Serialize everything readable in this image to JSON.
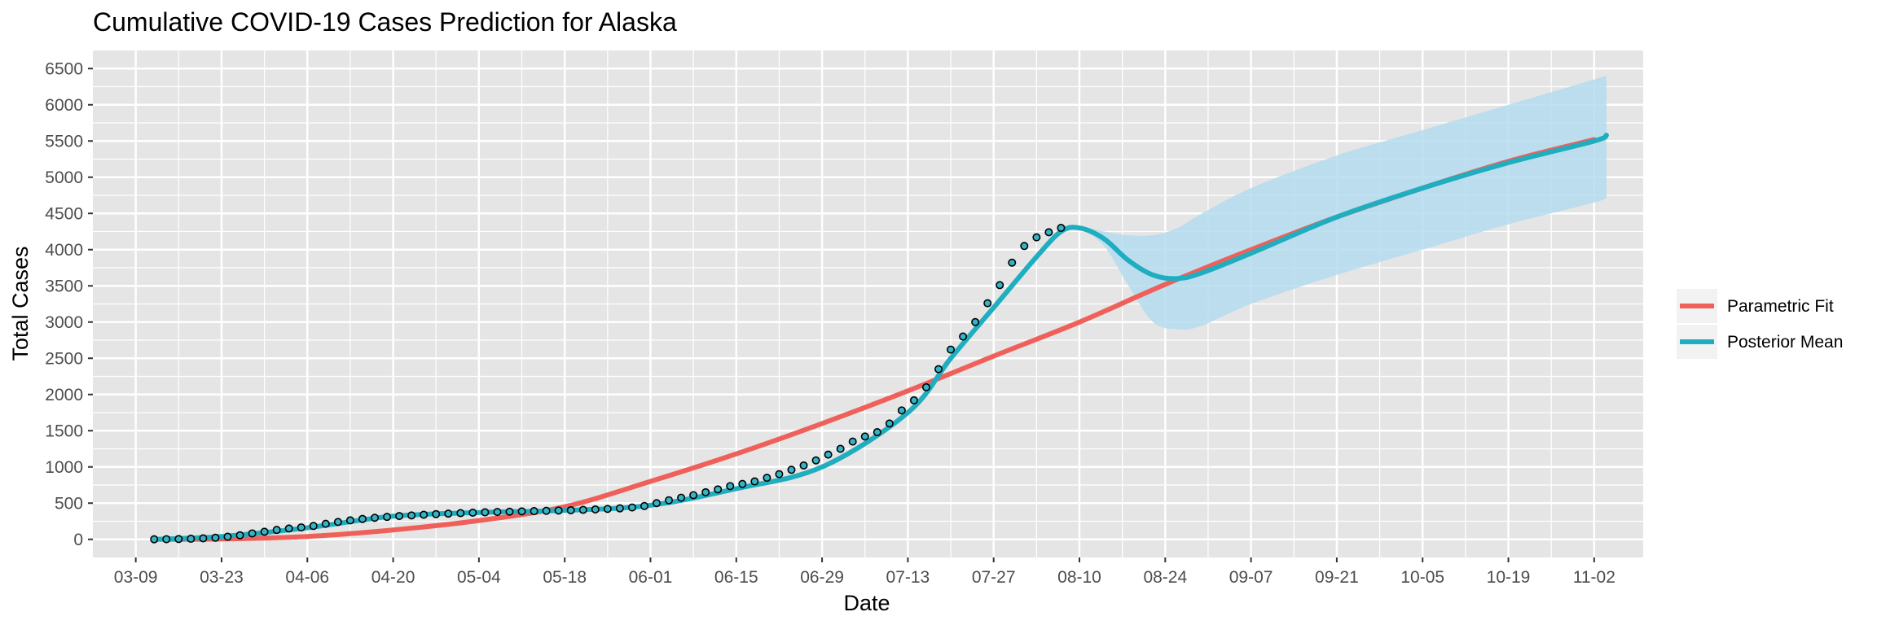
{
  "chart_data": {
    "type": "line",
    "title": "Cumulative COVID-19 Cases Prediction for Alaska",
    "xlabel": "Date",
    "ylabel": "Total Cases",
    "x_tick_labels": [
      "03-09",
      "03-23",
      "04-06",
      "04-20",
      "05-04",
      "05-18",
      "06-01",
      "06-15",
      "06-29",
      "07-13",
      "07-27",
      "08-10",
      "08-24",
      "09-07",
      "09-21",
      "10-05",
      "10-19",
      "11-02"
    ],
    "y_ticks": [
      0,
      500,
      1000,
      1500,
      2000,
      2500,
      3000,
      3500,
      4000,
      4500,
      5000,
      5500,
      6000,
      6500
    ],
    "xlim": [
      "2020-03-02",
      "2020-11-10"
    ],
    "ylim": [
      -250,
      6750
    ],
    "grid": true,
    "legend_position": "right",
    "colors": {
      "panel": "#e5e5e5",
      "grid": "#ffffff",
      "parametric": "#f0605a",
      "posterior": "#1faebf",
      "band": "#b5dcee",
      "points_fill": "#35b4c6",
      "points_stroke": "#000000"
    },
    "series": [
      {
        "name": "Parametric Fit",
        "x": [
          "2020-03-12",
          "2020-03-23",
          "2020-04-06",
          "2020-04-20",
          "2020-05-04",
          "2020-05-18",
          "2020-06-01",
          "2020-06-15",
          "2020-06-29",
          "2020-07-13",
          "2020-07-27",
          "2020-08-10",
          "2020-08-24",
          "2020-09-07",
          "2020-09-21",
          "2020-10-05",
          "2020-10-19",
          "2020-11-02"
        ],
        "y": [
          0,
          5,
          40,
          130,
          260,
          450,
          800,
          1180,
          1600,
          2050,
          2530,
          3000,
          3520,
          4000,
          4450,
          4850,
          5220,
          5520
        ]
      },
      {
        "name": "Posterior Mean",
        "x": [
          "2020-03-12",
          "2020-03-23",
          "2020-04-06",
          "2020-04-20",
          "2020-05-04",
          "2020-05-18",
          "2020-06-01",
          "2020-06-15",
          "2020-06-29",
          "2020-07-13",
          "2020-07-20",
          "2020-07-27",
          "2020-08-03",
          "2020-08-07",
          "2020-08-10",
          "2020-08-14",
          "2020-08-18",
          "2020-08-22",
          "2020-08-26",
          "2020-08-30",
          "2020-09-07",
          "2020-09-21",
          "2020-10-05",
          "2020-10-19",
          "2020-11-02",
          "2020-11-04"
        ],
        "y": [
          0,
          40,
          160,
          320,
          370,
          400,
          470,
          700,
          1000,
          1750,
          2500,
          3200,
          3900,
          4250,
          4300,
          4150,
          3850,
          3650,
          3600,
          3680,
          3950,
          4450,
          4850,
          5200,
          5500,
          5580
        ]
      }
    ],
    "band": {
      "name": "Posterior interval",
      "x": [
        "2020-08-07",
        "2020-08-10",
        "2020-08-14",
        "2020-08-18",
        "2020-08-22",
        "2020-08-26",
        "2020-08-30",
        "2020-09-07",
        "2020-09-21",
        "2020-10-05",
        "2020-10-19",
        "2020-11-02",
        "2020-11-04"
      ],
      "upper": [
        4290,
        4320,
        4250,
        4200,
        4200,
        4300,
        4500,
        4850,
        5300,
        5650,
        6000,
        6350,
        6400
      ],
      "lower": [
        4290,
        4280,
        4050,
        3500,
        3000,
        2900,
        2950,
        3250,
        3650,
        4000,
        4350,
        4650,
        4720
      ]
    },
    "observed": {
      "name": "Observed cases",
      "x": [
        "2020-03-12",
        "2020-03-14",
        "2020-03-16",
        "2020-03-18",
        "2020-03-20",
        "2020-03-22",
        "2020-03-24",
        "2020-03-26",
        "2020-03-28",
        "2020-03-30",
        "2020-04-01",
        "2020-04-03",
        "2020-04-05",
        "2020-04-07",
        "2020-04-09",
        "2020-04-11",
        "2020-04-13",
        "2020-04-15",
        "2020-04-17",
        "2020-04-19",
        "2020-04-21",
        "2020-04-23",
        "2020-04-25",
        "2020-04-27",
        "2020-04-29",
        "2020-05-01",
        "2020-05-03",
        "2020-05-05",
        "2020-05-07",
        "2020-05-09",
        "2020-05-11",
        "2020-05-13",
        "2020-05-15",
        "2020-05-17",
        "2020-05-19",
        "2020-05-21",
        "2020-05-23",
        "2020-05-25",
        "2020-05-27",
        "2020-05-29",
        "2020-05-31",
        "2020-06-02",
        "2020-06-04",
        "2020-06-06",
        "2020-06-08",
        "2020-06-10",
        "2020-06-12",
        "2020-06-14",
        "2020-06-16",
        "2020-06-18",
        "2020-06-20",
        "2020-06-22",
        "2020-06-24",
        "2020-06-26",
        "2020-06-28",
        "2020-06-30",
        "2020-07-02",
        "2020-07-04",
        "2020-07-06",
        "2020-07-08",
        "2020-07-10",
        "2020-07-12",
        "2020-07-14",
        "2020-07-16",
        "2020-07-18",
        "2020-07-20",
        "2020-07-22",
        "2020-07-24",
        "2020-07-26",
        "2020-07-28",
        "2020-07-30",
        "2020-08-01",
        "2020-08-03",
        "2020-08-05",
        "2020-08-07"
      ],
      "y": [
        1,
        2,
        4,
        8,
        14,
        22,
        36,
        56,
        82,
        105,
        130,
        150,
        165,
        185,
        215,
        240,
        262,
        282,
        298,
        310,
        322,
        330,
        340,
        348,
        355,
        362,
        368,
        373,
        378,
        382,
        386,
        390,
        394,
        398,
        402,
        407,
        413,
        420,
        428,
        440,
        460,
        500,
        540,
        575,
        610,
        650,
        690,
        735,
        765,
        800,
        850,
        900,
        960,
        1020,
        1090,
        1170,
        1250,
        1350,
        1420,
        1480,
        1600,
        1780,
        1920,
        2100,
        2350,
        2620,
        2800,
        3000,
        3260,
        3510,
        3820,
        4050,
        4170,
        4240,
        4300
      ]
    }
  }
}
